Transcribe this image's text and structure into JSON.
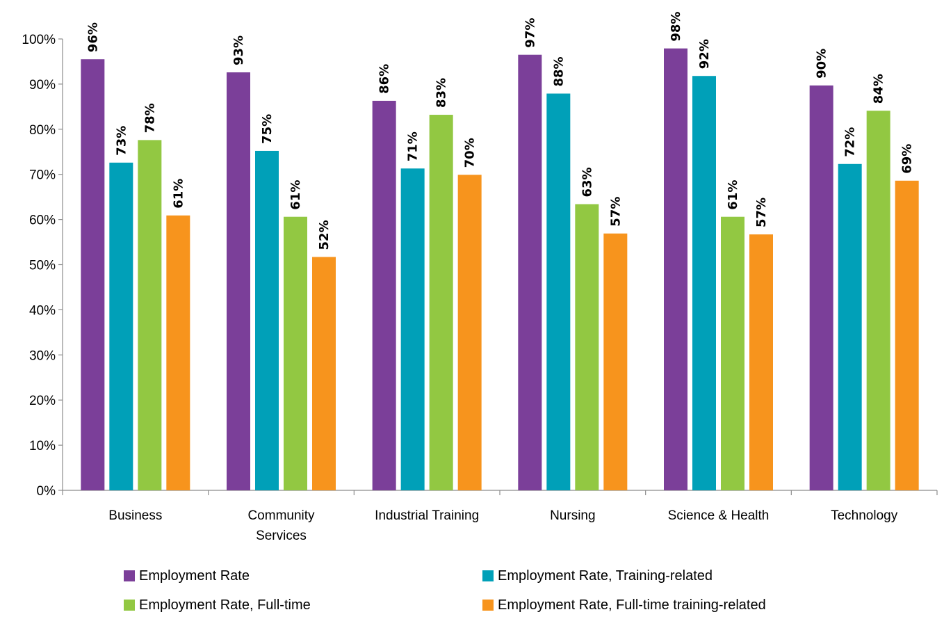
{
  "chart_data": {
    "type": "bar",
    "title": "",
    "xlabel": "",
    "ylabel": "",
    "categories": [
      [
        "Business"
      ],
      [
        "Community",
        "Services"
      ],
      [
        "Industrial Training"
      ],
      [
        "Nursing"
      ],
      [
        "Science & Health"
      ],
      [
        "Technology"
      ]
    ],
    "series": [
      {
        "name": "Employment Rate",
        "color": "#7B3F99",
        "values": [
          95.5,
          92.6,
          86.3,
          96.5,
          97.9,
          89.7
        ],
        "labels": [
          "96%",
          "93%",
          "86%",
          "97%",
          "98%",
          "90%"
        ]
      },
      {
        "name": "Employment Rate, Training-related",
        "color": "#00A0B8",
        "values": [
          72.6,
          75.2,
          71.3,
          87.9,
          91.8,
          72.3
        ],
        "labels": [
          "73%",
          "75%",
          "71%",
          "88%",
          "92%",
          "72%"
        ]
      },
      {
        "name": "Employment Rate, Full-time",
        "color": "#92C842",
        "values": [
          77.6,
          60.6,
          83.2,
          63.4,
          60.6,
          84.1
        ],
        "labels": [
          "78%",
          "61%",
          "83%",
          "63%",
          "61%",
          "84%"
        ]
      },
      {
        "name": "Employment Rate, Full-time training-related",
        "color": "#F7941D",
        "values": [
          60.9,
          51.7,
          69.9,
          56.9,
          56.7,
          68.6
        ],
        "labels": [
          "61%",
          "52%",
          "70%",
          "57%",
          "57%",
          "69%"
        ]
      }
    ],
    "ylim": [
      0,
      100
    ],
    "yticks": [
      "0%",
      "10%",
      "20%",
      "30%",
      "40%",
      "50%",
      "60%",
      "70%",
      "80%",
      "90%",
      "100%"
    ],
    "ytick_values": [
      0,
      10,
      20,
      30,
      40,
      50,
      60,
      70,
      80,
      90,
      100
    ],
    "grid": false,
    "legend_position": "bottom"
  }
}
